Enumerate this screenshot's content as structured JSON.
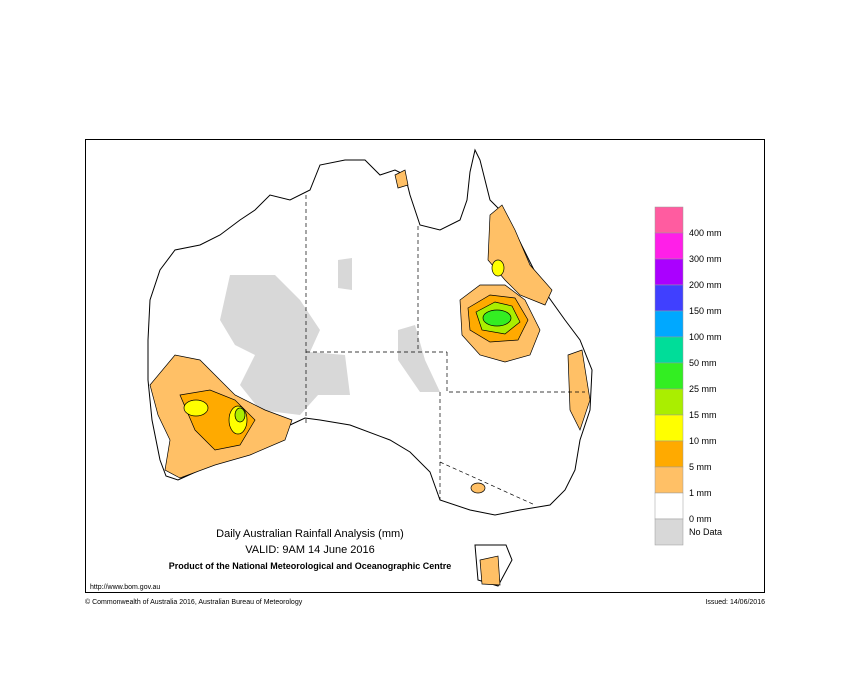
{
  "map": {
    "title": "Daily Australian Rainfall Analysis (mm)",
    "valid": "VALID: 9AM 14 June 2016",
    "product": "Product of the National Meteorological and Oceanographic Centre",
    "url": "http://www.bom.gov.au",
    "copyright": "© Commonwealth of Australia 2016, Australian Bureau of Meteorology",
    "issued": "Issued: 14/06/2016"
  },
  "legend": {
    "colors": [
      "#ff5ca0",
      "#ff1fe8",
      "#aa00ff",
      "#4040ff",
      "#00a8ff",
      "#00dd99",
      "#33ee22",
      "#aaee00",
      "#ffff00",
      "#ffaa00",
      "#ffc066",
      "#ffffff",
      "#d8d8d8"
    ],
    "thresholds": [
      "400 mm",
      "300 mm",
      "200 mm",
      "150 mm",
      "100 mm",
      "50 mm",
      "25 mm",
      "15 mm",
      "10 mm",
      "5 mm",
      "1 mm",
      "0 mm"
    ],
    "no_data": "No Data"
  }
}
